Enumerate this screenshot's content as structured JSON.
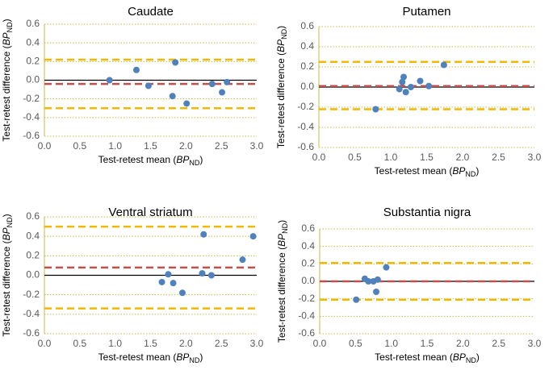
{
  "colors": {
    "grid": "#bfbf4a",
    "zero": "#000000",
    "mean": "#c0504d",
    "loa": "#f2b800",
    "point": "#4f81bd",
    "tick": "#595959"
  },
  "chart_data": [
    {
      "type": "scatter",
      "title": "Caudate",
      "xlabel_main": "Test-retest mean (",
      "xlabel_italic": "BP",
      "xlabel_sub": "ND",
      "xlabel_close": ")",
      "ylabel_main": "Test-retest difference (",
      "ylabel_italic": "BP",
      "ylabel_sub": "ND",
      "ylabel_close": ")",
      "xlim": [
        0,
        3
      ],
      "ylim": [
        -0.6,
        0.6
      ],
      "xticks": [
        "0.0",
        "0.5",
        "1.0",
        "1.5",
        "2.0",
        "2.5",
        "3.0"
      ],
      "yticks": [
        "0.6",
        "0.4",
        "0.2",
        "0.0",
        "-0.2",
        "-0.4",
        "-0.6"
      ],
      "grid": true,
      "mean_difference": -0.04,
      "limits_of_agreement": [
        0.22,
        -0.3
      ],
      "points": [
        {
          "x": 0.92,
          "y": 0.0
        },
        {
          "x": 1.3,
          "y": 0.11
        },
        {
          "x": 1.47,
          "y": -0.06
        },
        {
          "x": 1.81,
          "y": -0.17
        },
        {
          "x": 1.85,
          "y": 0.19
        },
        {
          "x": 2.01,
          "y": -0.25
        },
        {
          "x": 2.37,
          "y": -0.04
        },
        {
          "x": 2.51,
          "y": -0.13
        },
        {
          "x": 2.58,
          "y": -0.02
        }
      ]
    },
    {
      "type": "scatter",
      "title": "Putamen",
      "xlabel_main": "Test-retest mean (",
      "xlabel_italic": "BP",
      "xlabel_sub": "ND",
      "xlabel_close": ")",
      "ylabel_main": "Test-retest difference (",
      "ylabel_italic": "BP",
      "ylabel_sub": "ND",
      "ylabel_close": ")",
      "xlim": [
        0,
        3
      ],
      "ylim": [
        -0.6,
        0.6
      ],
      "xticks": [
        "0.0",
        "0.5",
        "1.0",
        "1.5",
        "2.0",
        "2.5",
        "3.0"
      ],
      "yticks": [
        "0.6",
        "0.4",
        "0.2",
        "0.0",
        "-0.2",
        "-0.4",
        "-0.6"
      ],
      "grid": true,
      "mean_difference": 0.01,
      "limits_of_agreement": [
        0.25,
        -0.22
      ],
      "points": [
        {
          "x": 0.79,
          "y": -0.22
        },
        {
          "x": 1.12,
          "y": -0.02
        },
        {
          "x": 1.16,
          "y": 0.05
        },
        {
          "x": 1.18,
          "y": 0.1
        },
        {
          "x": 1.21,
          "y": -0.05
        },
        {
          "x": 1.28,
          "y": 0.0
        },
        {
          "x": 1.41,
          "y": 0.06
        },
        {
          "x": 1.53,
          "y": 0.01
        },
        {
          "x": 1.74,
          "y": 0.22
        }
      ]
    },
    {
      "type": "scatter",
      "title": "Ventral striatum",
      "xlabel_main": "Test-retest mean (",
      "xlabel_italic": "BP",
      "xlabel_sub": "ND",
      "xlabel_close": ")",
      "ylabel_main": "Test-retest difference (",
      "ylabel_italic": "BP",
      "ylabel_sub": "ND",
      "ylabel_close": ")",
      "xlim": [
        0,
        3
      ],
      "ylim": [
        -0.6,
        0.6
      ],
      "xticks": [
        "0.0",
        "0.5",
        "1.0",
        "1.5",
        "2.0",
        "2.5",
        "3.0"
      ],
      "yticks": [
        "0.6",
        "0.4",
        "0.2",
        "0.0",
        "-0.2",
        "-0.4",
        "-0.6"
      ],
      "grid": true,
      "mean_difference": 0.08,
      "limits_of_agreement": [
        0.5,
        -0.34
      ],
      "points": [
        {
          "x": 1.66,
          "y": -0.07
        },
        {
          "x": 1.75,
          "y": 0.01
        },
        {
          "x": 1.82,
          "y": -0.08
        },
        {
          "x": 1.95,
          "y": -0.18
        },
        {
          "x": 2.23,
          "y": 0.02
        },
        {
          "x": 2.25,
          "y": 0.42
        },
        {
          "x": 2.36,
          "y": 0.0
        },
        {
          "x": 2.8,
          "y": 0.16
        },
        {
          "x": 2.95,
          "y": 0.4
        }
      ]
    },
    {
      "type": "scatter",
      "title": "Substantia nigra",
      "xlabel_main": "Test-retest mean (",
      "xlabel_italic": "BP",
      "xlabel_sub": "ND",
      "xlabel_close": ")",
      "ylabel_main": "Test-retest difference (",
      "ylabel_italic": "BP",
      "ylabel_sub": "ND",
      "ylabel_close": ")",
      "xlim": [
        0,
        3
      ],
      "ylim": [
        -0.6,
        0.6
      ],
      "xticks": [
        "0.0",
        "0.5",
        "1.0",
        "1.5",
        "2.0",
        "2.5",
        "3.0"
      ],
      "yticks": [
        "0.6",
        "0.4",
        "0.2",
        "0.0",
        "-0.2",
        "-0.4",
        "-0.6"
      ],
      "grid": true,
      "mean_difference": 0.0,
      "limits_of_agreement": [
        0.21,
        -0.21
      ],
      "points": [
        {
          "x": 0.51,
          "y": -0.21
        },
        {
          "x": 0.63,
          "y": 0.03
        },
        {
          "x": 0.68,
          "y": 0.0
        },
        {
          "x": 0.75,
          "y": 0.0
        },
        {
          "x": 0.79,
          "y": -0.12
        },
        {
          "x": 0.81,
          "y": 0.02
        },
        {
          "x": 0.93,
          "y": 0.16
        }
      ]
    }
  ]
}
